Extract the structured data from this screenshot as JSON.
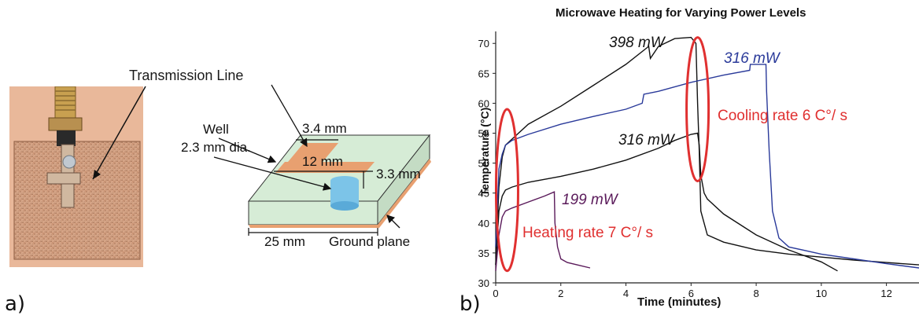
{
  "panel_a": {
    "label": "a)",
    "photo_label": "Transmission Line",
    "diagram": {
      "well_label": "Well",
      "well_dia": "2.3 mm dia.",
      "stub_width": "3.4 mm",
      "line_length": "12 mm",
      "thickness": "3.3 mm",
      "board_width": "25 mm",
      "ground_plane": "Ground plane"
    },
    "colors": {
      "board": "#d6ecd6",
      "copper": "#e8a070",
      "well": "#7cc4e8"
    }
  },
  "panel_b": {
    "label": "b)",
    "annotations": {
      "heating": "Heating rate 7 C°/ s",
      "cooling": "Cooling rate 6 C°/ s",
      "p398": "398 mW",
      "p316_blue": "316 mW",
      "p316_black": "316 mW",
      "p199": "199 mW"
    },
    "colors": {
      "black": "#111111",
      "blue": "#2a3a9a",
      "purple": "#5a1a5a",
      "ellipse": "#e03030"
    }
  },
  "chart_data": {
    "type": "line",
    "title": "Microwave Heating for Varying Power Levels",
    "xlabel": "Time (minutes)",
    "ylabel": "Temperature (°C)",
    "xlim": [
      0,
      13
    ],
    "ylim": [
      30,
      72
    ],
    "xticks": [
      0,
      2,
      4,
      6,
      8,
      10,
      12
    ],
    "yticks": [
      30,
      35,
      40,
      45,
      50,
      55,
      60,
      65,
      70
    ],
    "grid": false,
    "series": [
      {
        "name": "398 mW",
        "color": "#111111",
        "x": [
          0,
          0.1,
          0.2,
          0.3,
          0.5,
          1,
          2,
          3,
          4,
          4.7,
          4.75,
          5,
          5.5,
          6,
          6.15,
          6.2,
          6.25,
          6.3,
          6.5,
          7,
          8,
          9,
          10,
          11,
          12,
          13
        ],
        "y": [
          33,
          46,
          51,
          53,
          54,
          56.5,
          59.5,
          63,
          66.5,
          69.5,
          67.5,
          69.5,
          70.8,
          71,
          70,
          60,
          52,
          42,
          38,
          36.8,
          35.5,
          34.8,
          34.3,
          33.8,
          33.4,
          33
        ]
      },
      {
        "name": "316 mW",
        "color": "#2a3a9a",
        "x": [
          0,
          0.1,
          0.2,
          0.3,
          0.5,
          1,
          2,
          3,
          4,
          4.5,
          4.55,
          5,
          6,
          7,
          7.8,
          7.82,
          8.3,
          8.32,
          8.4,
          8.5,
          8.7,
          9,
          10,
          11,
          12,
          13
        ],
        "y": [
          36,
          49,
          51.5,
          53,
          53.8,
          54.8,
          56.5,
          57.8,
          59,
          60,
          61.5,
          62,
          63.5,
          64.7,
          65.5,
          66.5,
          66.5,
          62,
          52,
          42,
          37.5,
          36,
          34.8,
          34,
          33.2,
          32.5
        ]
      },
      {
        "name": "316 mW",
        "color": "#111111",
        "x": [
          0,
          0.1,
          0.2,
          0.3,
          0.5,
          1,
          2,
          3,
          4,
          5,
          5.5,
          6,
          6.2,
          6.25,
          6.3,
          6.4,
          6.5,
          7,
          8,
          9,
          10,
          10.5
        ],
        "y": [
          33,
          42,
          44.5,
          45.5,
          46,
          46.8,
          47.8,
          49,
          50.5,
          52.5,
          53.8,
          54.8,
          55,
          53,
          48,
          45,
          44,
          41.5,
          38,
          35.5,
          33.5,
          32
        ]
      },
      {
        "name": "199 mW",
        "color": "#5a1a5a",
        "x": [
          0,
          0.1,
          0.2,
          0.3,
          0.5,
          1,
          1.5,
          1.8,
          1.82,
          1.9,
          2,
          2.2,
          2.5,
          2.9
        ],
        "y": [
          32,
          38,
          41,
          42,
          42.5,
          43.5,
          44.5,
          45.2,
          40,
          36,
          34,
          33.4,
          33,
          32.5
        ]
      }
    ]
  }
}
